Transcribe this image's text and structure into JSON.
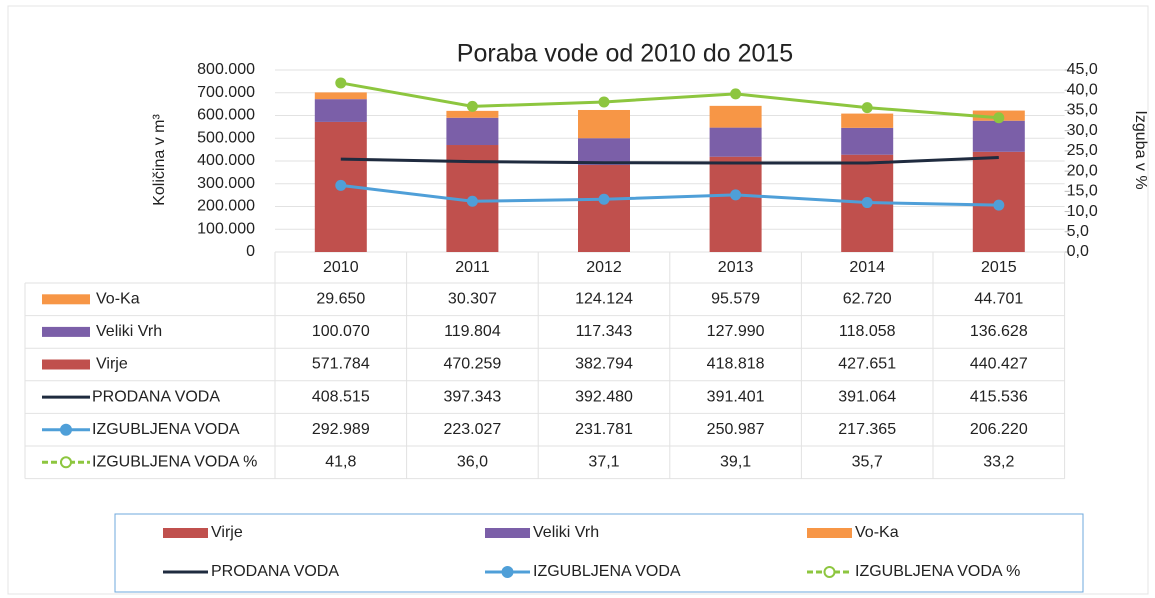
{
  "chart_data": {
    "type": "bar",
    "stacked": true,
    "title": "Poraba vode od 2010 do 2015",
    "y_label": "Količina v m³",
    "y2_label": "Izguba v %",
    "categories": [
      "2010",
      "2011",
      "2012",
      "2013",
      "2014",
      "2015"
    ],
    "ylim": [
      0,
      800000
    ],
    "yticks": [
      0,
      {
        "value": 100000,
        "label": "100.000"
      },
      {
        "value": 200000,
        "label": "200.000"
      },
      {
        "value": 300000,
        "label": "300.000"
      },
      {
        "value": 400000,
        "label": "400.000"
      },
      {
        "value": 500000,
        "label": "500.000"
      },
      {
        "value": 600000,
        "label": "600.000"
      },
      {
        "value": 700000,
        "label": "700.000"
      },
      {
        "value": 800000,
        "label": "800.000"
      }
    ],
    "y2lim": [
      0,
      45
    ],
    "y2ticks": [
      {
        "value": 0,
        "label": "0,0"
      },
      {
        "value": 5,
        "label": "5,0"
      },
      {
        "value": 10,
        "label": "10,0"
      },
      {
        "value": 15,
        "label": "15,0"
      },
      {
        "value": 20,
        "label": "20,0"
      },
      {
        "value": 25,
        "label": "25,0"
      },
      {
        "value": 30,
        "label": "30,0"
      },
      {
        "value": 35,
        "label": "35,0"
      },
      {
        "value": 40,
        "label": "40,0"
      },
      {
        "value": 45,
        "label": "45,0"
      }
    ],
    "legend": "bottom",
    "series": [
      {
        "name": "Vo-Ka",
        "type": "bar",
        "color": "#f79646",
        "values": [
          29650,
          30307,
          124124,
          95579,
          62720,
          44701
        ],
        "value_labels": [
          "29.650",
          "30.307",
          "124.124",
          "95.579",
          "62.720",
          "44.701"
        ]
      },
      {
        "name": "Veliki Vrh",
        "type": "bar",
        "color": "#7b5fa8",
        "values": [
          100070,
          119804,
          117343,
          127990,
          118058,
          136628
        ],
        "value_labels": [
          "100.070",
          "119.804",
          "117.343",
          "127.990",
          "118.058",
          "136.628"
        ]
      },
      {
        "name": "Virje",
        "type": "bar",
        "color": "#c0504d",
        "values": [
          571784,
          470259,
          382794,
          418818,
          427651,
          440427
        ],
        "value_labels": [
          "571.784",
          "470.259",
          "382.794",
          "418.818",
          "427.651",
          "440.427"
        ]
      },
      {
        "name": "PRODANA VODA",
        "type": "line",
        "color": "#1f2b3f",
        "values": [
          408515,
          397343,
          392480,
          391401,
          391064,
          415536
        ],
        "value_labels": [
          "408.515",
          "397.343",
          "392.480",
          "391.401",
          "391.064",
          "415.536"
        ]
      },
      {
        "name": "IZGUBLJENA VODA",
        "type": "line",
        "marker": true,
        "color": "#4f9fd8",
        "values": [
          292989,
          223027,
          231781,
          250987,
          217365,
          206220
        ],
        "value_labels": [
          "292.989",
          "223.027",
          "231.781",
          "250.987",
          "217.365",
          "206.220"
        ]
      },
      {
        "name": "IZGUBLJENA VODA %",
        "type": "line",
        "marker": true,
        "axis": "y2",
        "color": "#8dc63f",
        "values": [
          41.8,
          36.0,
          37.1,
          39.1,
          35.7,
          33.2
        ],
        "value_labels": [
          "41,8",
          "36,0",
          "37,1",
          "39,1",
          "35,7",
          "33,2"
        ]
      }
    ]
  }
}
